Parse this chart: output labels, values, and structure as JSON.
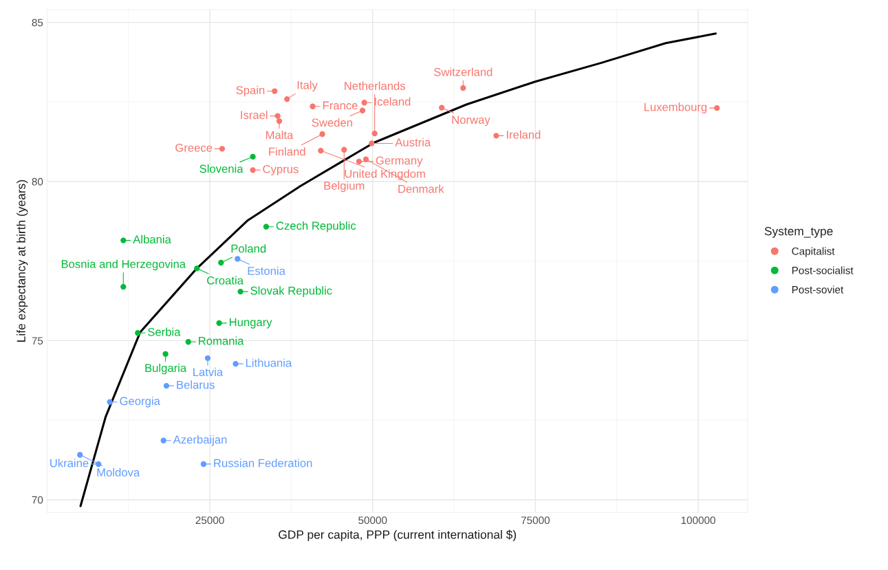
{
  "chart_data": {
    "type": "scatter",
    "xlabel": "GDP per capita, PPP (current international $)",
    "ylabel": "Life expectancy at birth (years)",
    "legend_title": "System_type",
    "xlim": [
      0,
      107600
    ],
    "ylim": [
      69.6,
      85.4
    ],
    "xticks": [
      25000,
      50000,
      75000,
      100000
    ],
    "yticks": [
      70,
      75,
      80,
      85
    ],
    "grid": true,
    "legend": "right",
    "marker": "circle",
    "series": [
      {
        "name": "Capitalist",
        "color": "#f8766d",
        "x": [
          34950,
          36850,
          40790,
          48720,
          48440,
          35410,
          35660,
          42270,
          42030,
          45620,
          26890,
          31600,
          47910,
          48970,
          49850,
          50310,
          63900,
          60610,
          68980,
          102870
        ],
        "values": [
          82.84,
          82.59,
          82.36,
          82.48,
          82.23,
          82.06,
          81.9,
          81.49,
          80.97,
          81.0,
          81.03,
          80.36,
          80.63,
          80.7,
          81.2,
          81.51,
          82.94,
          82.32,
          81.44,
          82.31
        ]
      },
      {
        "name": "Post-socialist",
        "color": "#00ba38",
        "x": [
          31600,
          33650,
          11710,
          11710,
          23010,
          26710,
          29700,
          26430,
          13930,
          21690,
          18190
        ],
        "values": [
          80.78,
          78.58,
          78.15,
          76.69,
          77.27,
          77.45,
          76.54,
          75.55,
          75.24,
          74.96,
          74.58
        ]
      },
      {
        "name": "Post-soviet",
        "color": "#619cff",
        "x": [
          29250,
          24670,
          28960,
          18330,
          9630,
          17880,
          24030,
          5050,
          7900
        ],
        "values": [
          77.57,
          74.45,
          74.27,
          73.58,
          73.07,
          71.86,
          71.12,
          71.41,
          71.12
        ]
      },
      {
        "color": "#000000",
        "type": "line",
        "marker": "none",
        "x": [
          5140,
          8990,
          14290,
          23010,
          30830,
          38930,
          50200,
          64400,
          74970,
          85130,
          95000,
          102680
        ],
        "values": [
          69.8,
          72.6,
          75.26,
          77.27,
          78.78,
          79.86,
          81.22,
          82.42,
          83.14,
          83.73,
          84.35,
          84.65
        ]
      }
    ],
    "annotations": [
      {
        "text": "Spain",
        "x": 34950,
        "y": 82.84
      },
      {
        "text": "Italy",
        "x": 36850,
        "y": 82.59
      },
      {
        "text": "France",
        "x": 40790,
        "y": 82.36
      },
      {
        "text": "Iceland",
        "x": 48720,
        "y": 82.48
      },
      {
        "text": "Sweden",
        "x": 48440,
        "y": 82.23
      },
      {
        "text": "Israel",
        "x": 35410,
        "y": 82.06
      },
      {
        "text": "Malta",
        "x": 35660,
        "y": 81.9
      },
      {
        "text": "Finland",
        "x": 42270,
        "y": 81.49
      },
      {
        "text": "United Kingdom",
        "x": 42030,
        "y": 80.97
      },
      {
        "text": "Belgium",
        "x": 45620,
        "y": 81.0
      },
      {
        "text": "Greece",
        "x": 26890,
        "y": 81.03
      },
      {
        "text": "Cyprus",
        "x": 31600,
        "y": 80.36
      },
      {
        "text": "Germany",
        "x": 47910,
        "y": 80.63
      },
      {
        "text": "Denmark",
        "x": 48970,
        "y": 80.7
      },
      {
        "text": "Austria",
        "x": 49850,
        "y": 81.2
      },
      {
        "text": "Netherlands",
        "x": 50310,
        "y": 81.51
      },
      {
        "text": "Switzerland",
        "x": 63900,
        "y": 82.94
      },
      {
        "text": "Norway",
        "x": 60610,
        "y": 82.32
      },
      {
        "text": "Ireland",
        "x": 68980,
        "y": 81.44
      },
      {
        "text": "Luxembourg",
        "x": 102870,
        "y": 82.31
      },
      {
        "text": "Slovenia",
        "x": 31600,
        "y": 80.78
      },
      {
        "text": "Czech Republic",
        "x": 33650,
        "y": 78.58
      },
      {
        "text": "Albania",
        "x": 11710,
        "y": 78.15
      },
      {
        "text": "Bosnia and Herzegovina",
        "x": 11710,
        "y": 76.69
      },
      {
        "text": "Croatia",
        "x": 23010,
        "y": 77.27
      },
      {
        "text": "Poland",
        "x": 26710,
        "y": 77.45
      },
      {
        "text": "Slovak Republic",
        "x": 29700,
        "y": 76.54
      },
      {
        "text": "Hungary",
        "x": 26430,
        "y": 75.55
      },
      {
        "text": "Serbia",
        "x": 13930,
        "y": 75.24
      },
      {
        "text": "Romania",
        "x": 21690,
        "y": 74.96
      },
      {
        "text": "Bulgaria",
        "x": 18190,
        "y": 74.58
      },
      {
        "text": "Estonia",
        "x": 29250,
        "y": 77.57
      },
      {
        "text": "Latvia",
        "x": 24670,
        "y": 74.45
      },
      {
        "text": "Lithuania",
        "x": 28960,
        "y": 74.27
      },
      {
        "text": "Belarus",
        "x": 18330,
        "y": 73.58
      },
      {
        "text": "Georgia",
        "x": 9630,
        "y": 73.07
      },
      {
        "text": "Azerbaijan",
        "x": 17880,
        "y": 71.86
      },
      {
        "text": "Russian Federation",
        "x": 24030,
        "y": 71.12
      },
      {
        "text": "Moldova",
        "x": 5050,
        "y": 71.41
      },
      {
        "text": "Ukraine",
        "x": 7900,
        "y": 71.12
      }
    ]
  }
}
